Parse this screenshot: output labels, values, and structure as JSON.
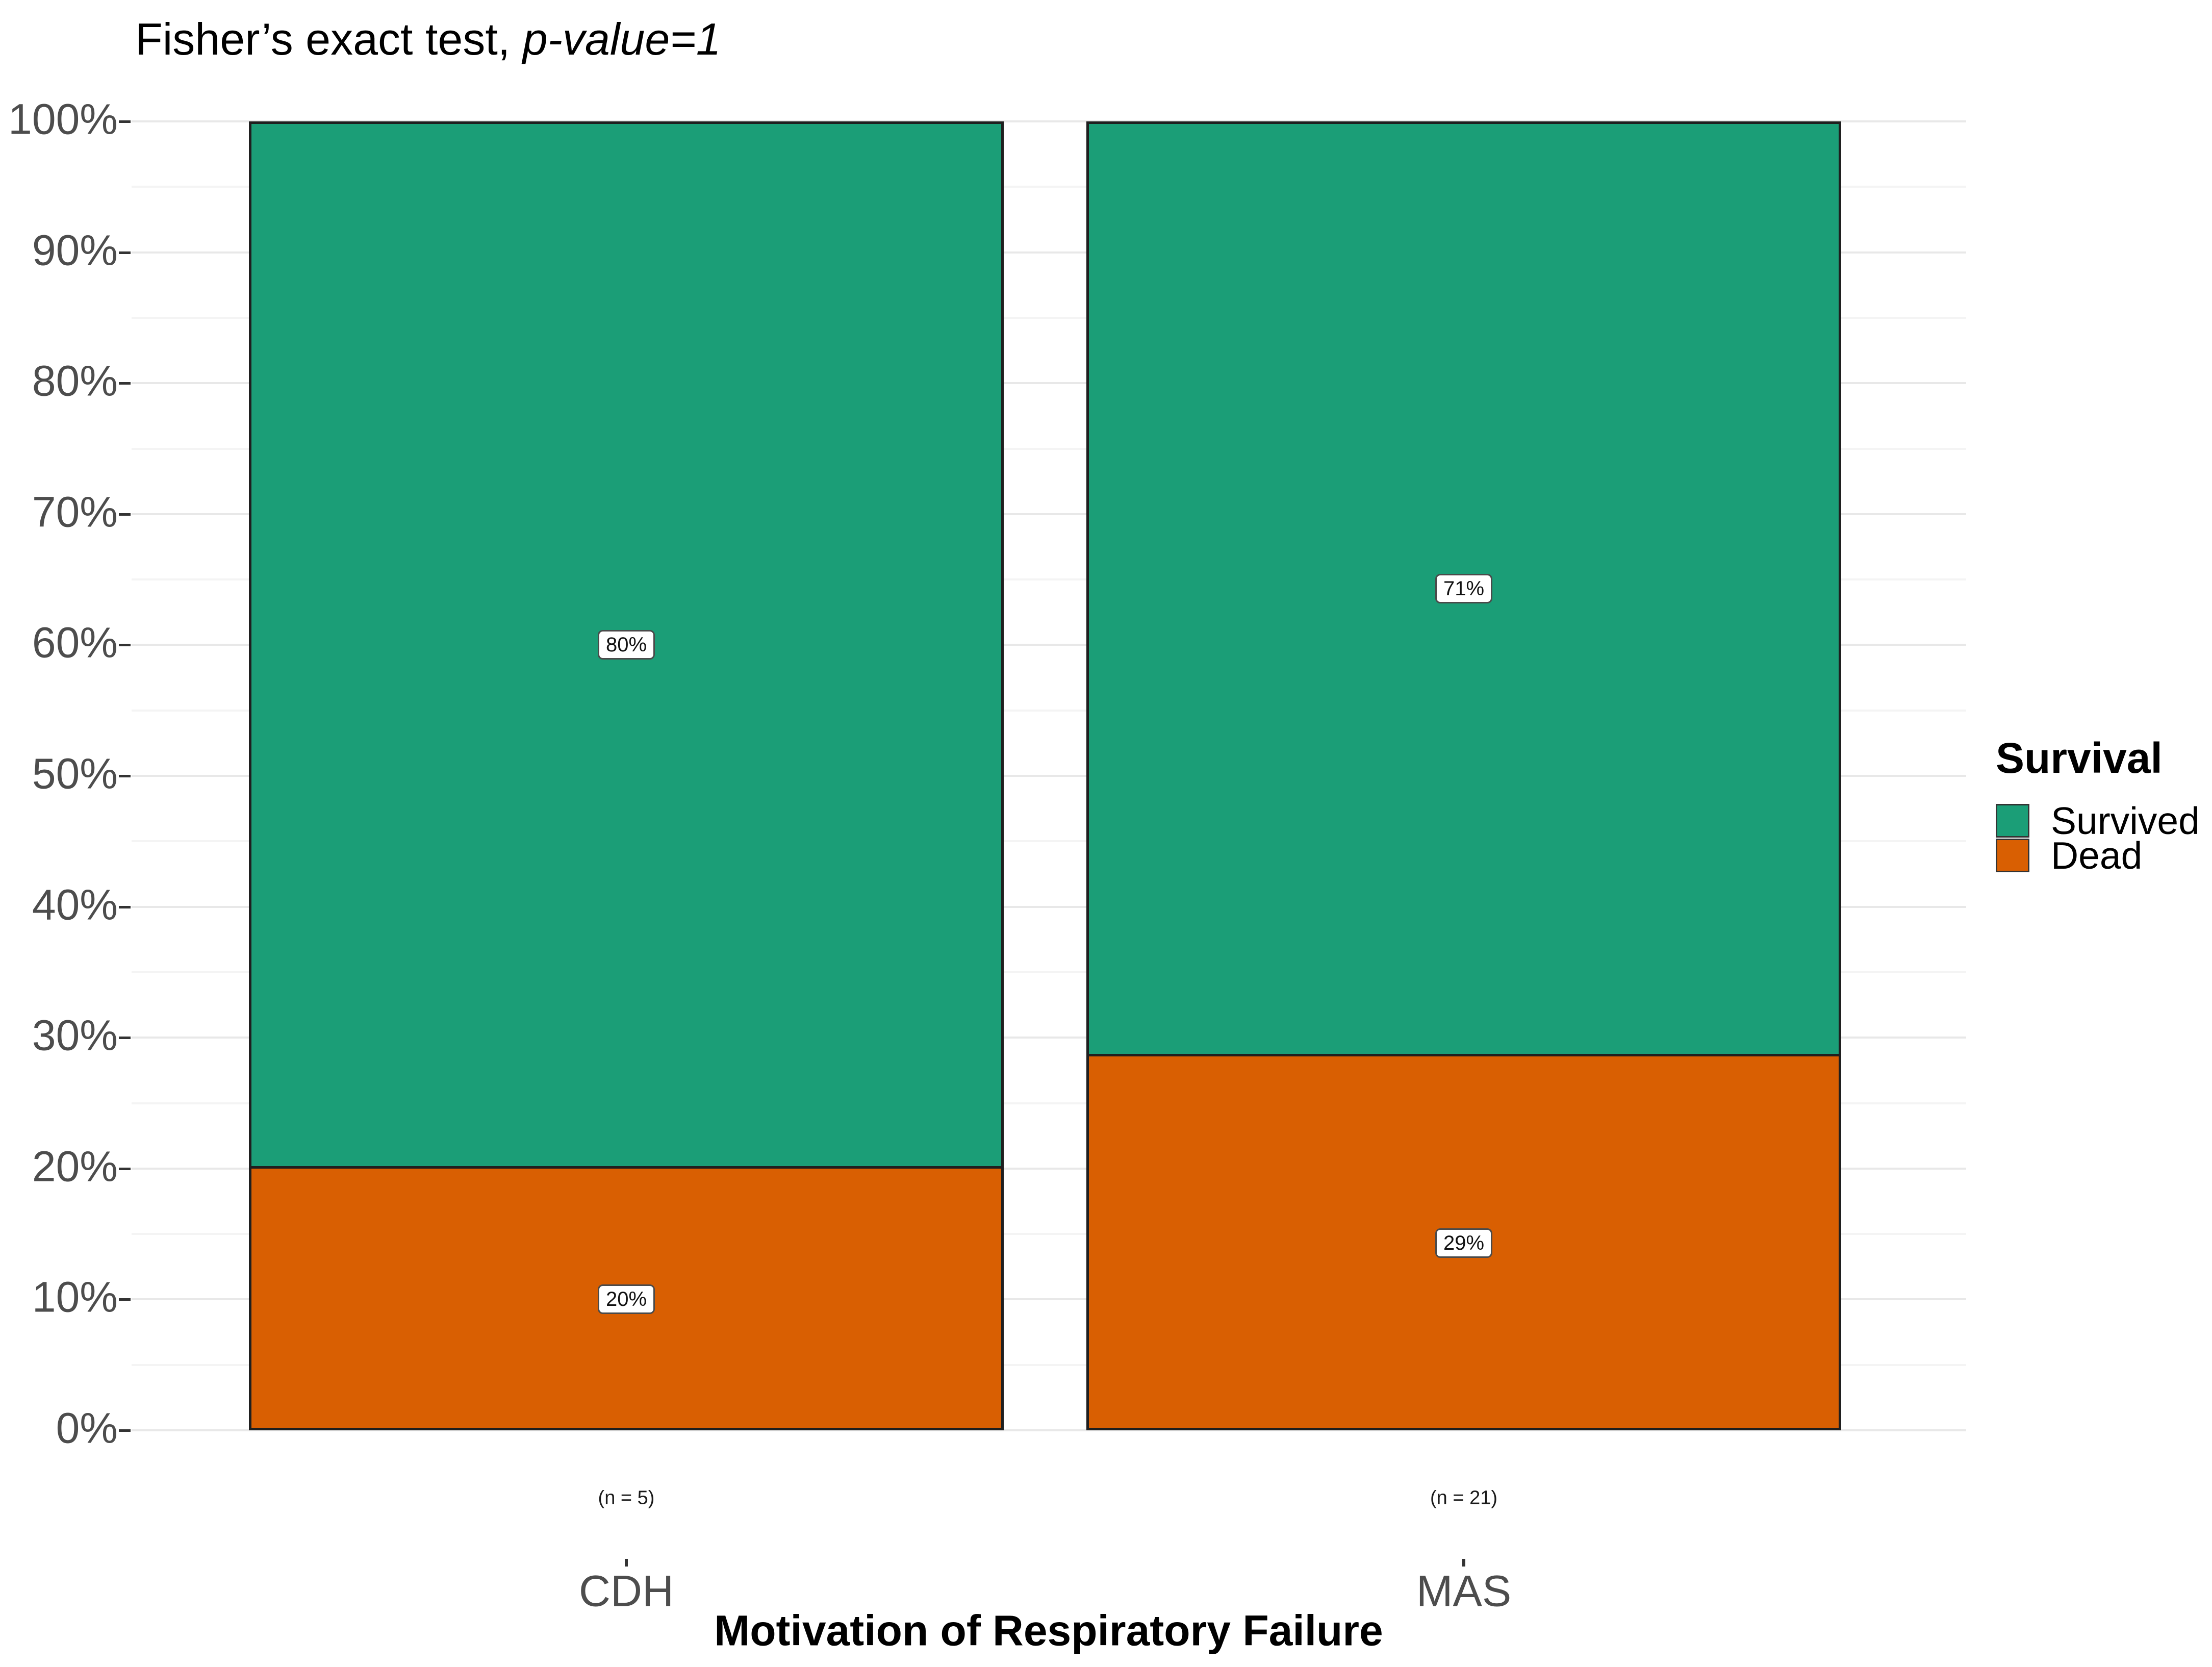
{
  "title": {
    "prefix": "Fisher’s exact test, ",
    "stat": "p-value=1"
  },
  "axis": {
    "x_title": "Motivation of Respiratory Failure",
    "y_tick_labels": [
      "0%",
      "10%",
      "20%",
      "30%",
      "40%",
      "50%",
      "60%",
      "70%",
      "80%",
      "90%",
      "100%"
    ]
  },
  "legend": {
    "title": "Survival"
  },
  "chart_data": {
    "type": "bar",
    "subtype": "stacked-percent",
    "title": "Fisher’s exact test, p-value=1",
    "xlabel": "Motivation of Respiratory Failure",
    "ylabel": "",
    "categories": [
      "CDH",
      "MAS"
    ],
    "category_counts": [
      "(n = 5)",
      "(n = 21)"
    ],
    "series": [
      {
        "name": "Survived",
        "color": "#1B9E77",
        "values": [
          80,
          71.43
        ],
        "labels": [
          "80%",
          "71%"
        ]
      },
      {
        "name": "Dead",
        "color": "#D95F02",
        "values": [
          20,
          28.57
        ],
        "labels": [
          "20%",
          "29%"
        ]
      }
    ],
    "ylim": [
      0,
      100
    ],
    "y_major_step": 10,
    "y_minor_step": 5,
    "grid": "major+minor",
    "legend_position": "right",
    "colors": {
      "survived": "#1B9E77",
      "dead": "#D95F02",
      "bar_border": "#1F1F1F",
      "grid_major": "#E8E8E8",
      "grid_minor": "#F4F4F4",
      "tick": "#333333",
      "axis_text": "#4D4D4D"
    }
  }
}
